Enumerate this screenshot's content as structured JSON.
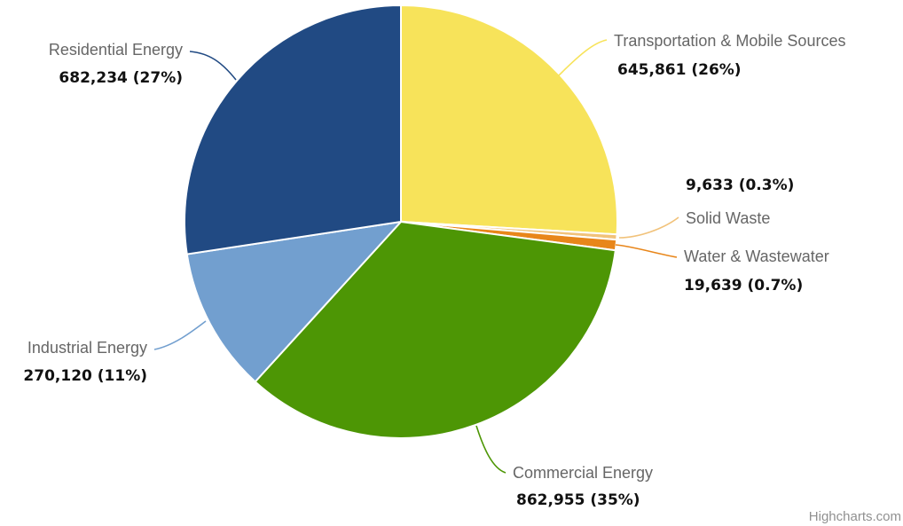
{
  "chart_data": {
    "type": "pie",
    "title": "",
    "slices": [
      {
        "name": "Transportation & Mobile Sources",
        "value": 645861,
        "value_label": "645,861 (26%)",
        "color": "#f7e35a"
      },
      {
        "name": "Solid Waste",
        "value": 9633,
        "value_label": "9,633 (0.3%)",
        "color": "#f1c27a"
      },
      {
        "name": "Water & Wastewater",
        "value": 19639,
        "value_label": "19,639 (0.7%)",
        "color": "#e8861a"
      },
      {
        "name": "Commercial Energy",
        "value": 862955,
        "value_label": "862,955 (35%)",
        "color": "#4d9605"
      },
      {
        "name": "Industrial Energy",
        "value": 270120,
        "value_label": "270,120 (11%)",
        "color": "#729fcf"
      },
      {
        "name": "Residential Energy",
        "value": 682234,
        "value_label": "682,234 (27%)",
        "color": "#214a83"
      }
    ],
    "start_direction": "top",
    "legend": "none"
  },
  "credit": "Highcharts.com"
}
